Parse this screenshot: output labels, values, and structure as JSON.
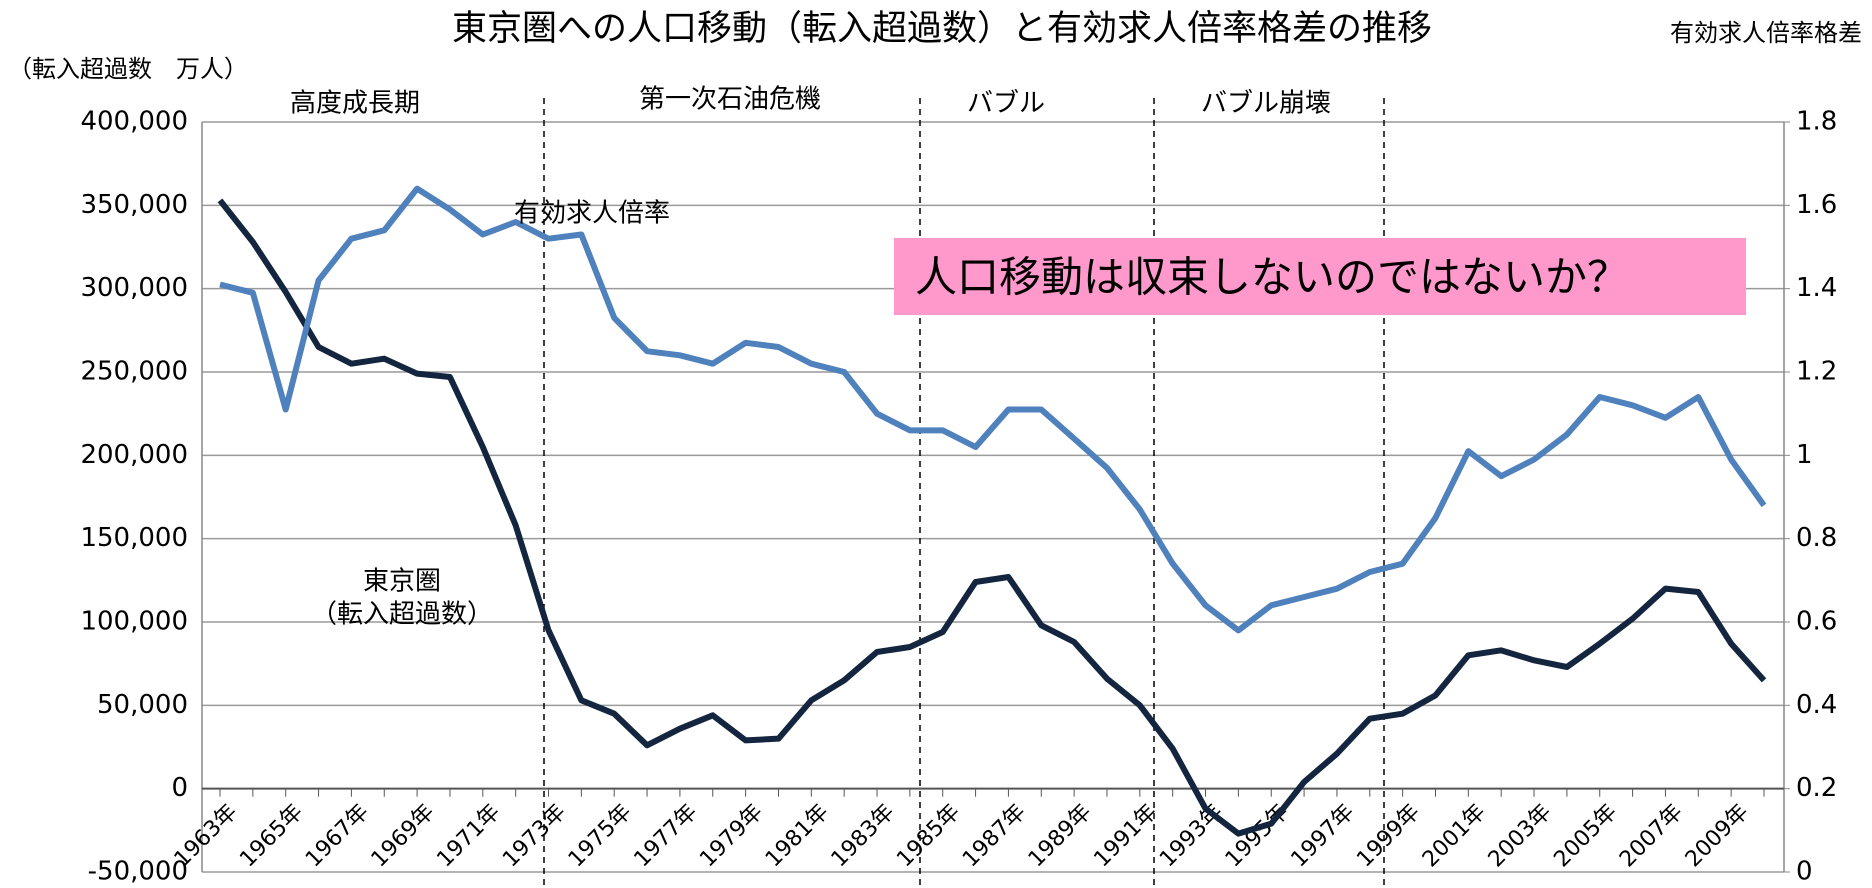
{
  "chart_data": {
    "type": "line",
    "title": "東京圏への人口移動（転入超過数）と有効求人倍率格差の推移",
    "y_label": "（転入超過数　万人）",
    "y2_label": "有効求人倍率格差",
    "categories": [
      "1963年",
      null,
      "1965年",
      null,
      "1967年",
      null,
      "1969年",
      null,
      "1971年",
      null,
      "1973年",
      null,
      "1975年",
      null,
      "1977年",
      null,
      "1979年",
      null,
      "1981年",
      null,
      "1983年",
      null,
      "1985年",
      null,
      "1987年",
      null,
      "1989年",
      null,
      "1991年",
      null,
      "1993年",
      null,
      "1995年",
      null,
      "1997年",
      null,
      "1999年",
      null,
      "2001年",
      null,
      "2003年",
      null,
      "2005年",
      null,
      "2007年",
      null,
      "2009年",
      null
    ],
    "series": [
      {
        "color": "#14253f",
        "values": [
          353000,
          328000,
          298000,
          265000,
          255000,
          258000,
          249000,
          247000,
          205000,
          158000,
          95000,
          53000,
          45000,
          26000,
          36000,
          44000,
          29000,
          30000,
          53000,
          65000,
          82000,
          85000,
          94000,
          124000,
          127000,
          98000,
          88000,
          66000,
          50000,
          24000,
          -12000,
          -27000,
          -21000,
          4000,
          21000,
          42000,
          45000,
          56000,
          80000,
          83000,
          77000,
          73000,
          87000,
          102000,
          120000,
          118000,
          87000,
          65000
        ]
      },
      {
        "color": "#4f81bd",
        "axis": "y2",
        "values": [
          1.41,
          1.39,
          1.11,
          1.42,
          1.52,
          1.54,
          1.64,
          1.59,
          1.53,
          1.56,
          1.52,
          1.53,
          1.33,
          1.25,
          1.24,
          1.22,
          1.27,
          1.26,
          1.22,
          1.2,
          1.1,
          1.06,
          1.06,
          1.02,
          1.11,
          1.11,
          1.04,
          0.97,
          0.87,
          0.74,
          0.64,
          0.58,
          0.64,
          0.66,
          0.68,
          0.72,
          0.74,
          0.85,
          1.01,
          0.95,
          0.99,
          1.05,
          1.14,
          1.12,
          1.09,
          1.14,
          0.99,
          0.88
        ]
      }
    ],
    "ylim": [
      -50000,
      400000
    ],
    "yticks": [
      {
        "value": -50000,
        "label": "-50,000"
      },
      0,
      {
        "value": 50000,
        "label": "50,000"
      },
      {
        "value": 100000,
        "label": "100,000"
      },
      {
        "value": 150000,
        "label": "150,000"
      },
      {
        "value": 200000,
        "label": "200,000"
      },
      {
        "value": 250000,
        "label": "250,000"
      },
      {
        "value": 300000,
        "label": "300,000"
      },
      {
        "value": 350000,
        "label": "350,000"
      },
      {
        "value": 400000,
        "label": "400,000"
      }
    ],
    "y2lim": [
      0,
      1.8
    ],
    "y2ticks": [
      0,
      0.2,
      0.4,
      0.6,
      0.8,
      1,
      1.2,
      1.4,
      1.6,
      1.8
    ],
    "grid": true,
    "periods": [
      "高度成長期",
      "第一次石油危機",
      "バブル",
      "バブル崩壊"
    ],
    "annotations": [
      "有効求人倍率",
      "東京圏",
      "（転入超過数）"
    ],
    "callout": "人口移動は収束しないのではないか？"
  }
}
